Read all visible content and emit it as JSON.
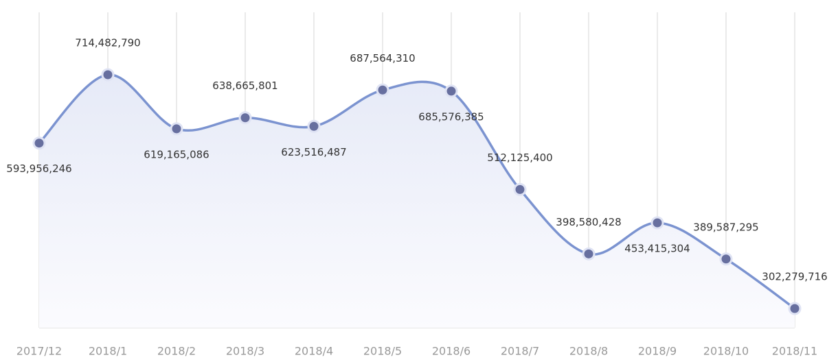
{
  "chart_data": {
    "type": "line",
    "categories": [
      "2017/12",
      "2018/1",
      "2018/2",
      "2018/3",
      "2018/4",
      "2018/5",
      "2018/6",
      "2018/7",
      "2018/8",
      "2018/9",
      "2018/10",
      "2018/11"
    ],
    "values": [
      593956246,
      714482790,
      619165086,
      638665801,
      623516487,
      687564310,
      685576385,
      512125400,
      398580428,
      453415304,
      389587295,
      302279716
    ],
    "value_labels": [
      "593,956,246",
      "714,482,790",
      "619,165,086",
      "638,665,801",
      "623,516,487",
      "687,564,310",
      "685,576,385",
      "512,125,400",
      "398,580,428",
      "453,415,304",
      "389,587,295",
      "302,279,716"
    ],
    "color": "#7b93d0",
    "marker_color": "#676f9f",
    "smooth": true,
    "area": true,
    "grid": true
  }
}
